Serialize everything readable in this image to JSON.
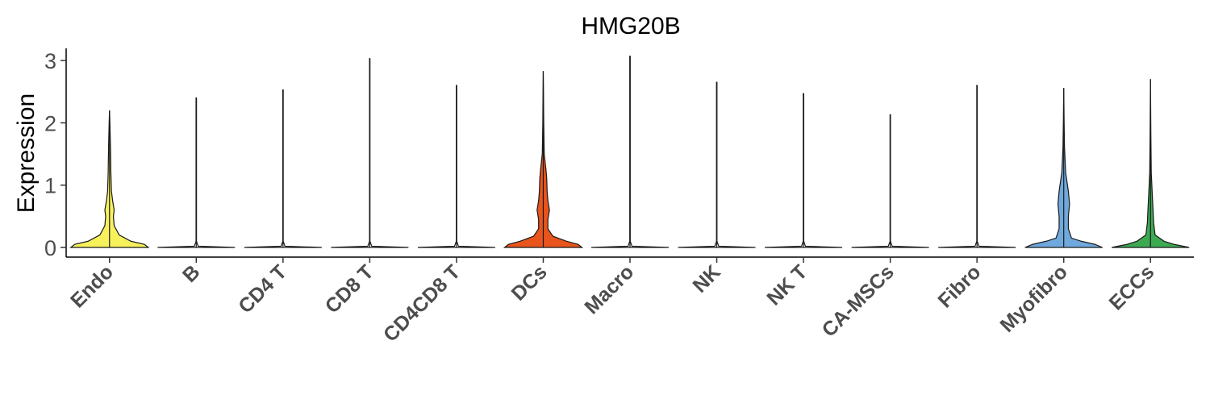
{
  "chart_data": {
    "type": "violin",
    "title": "HMG20B",
    "xlabel": "",
    "ylabel": "Expression",
    "ylim": [
      -0.15,
      3.2
    ],
    "yticks": [
      "0",
      "1",
      "2",
      "3"
    ],
    "grid": false,
    "legend": "none",
    "categories": [
      "Endo",
      "B",
      "CD4 T",
      "CD8 T",
      "CD4CD8 T",
      "DCs",
      "Macro",
      "NK",
      "NK T",
      "CA-MSCs",
      "Fibro",
      "Myofibro",
      "ECCs"
    ],
    "max_values": [
      2.2,
      2.4,
      2.53,
      3.03,
      2.6,
      2.83,
      3.07,
      2.65,
      2.47,
      2.13,
      2.6,
      2.56,
      2.7
    ],
    "colors": [
      "#F7F15C",
      "#FFFFFF",
      "#FFFFFF",
      "#FFFFFF",
      "#FFFFFF",
      "#E8541B",
      "#FFFFFF",
      "#FFFFFF",
      "#FFFFFF",
      "#FFFFFF",
      "#FFFFFF",
      "#6FA8DC",
      "#3DAA52"
    ],
    "density": [
      [
        [
          0,
          1.0
        ],
        [
          0.05,
          0.9
        ],
        [
          0.1,
          0.55
        ],
        [
          0.2,
          0.25
        ],
        [
          0.35,
          0.12
        ],
        [
          0.5,
          0.1
        ],
        [
          0.6,
          0.12
        ],
        [
          0.75,
          0.08
        ],
        [
          0.9,
          0.05
        ],
        [
          1.2,
          0.035
        ],
        [
          1.6,
          0.025
        ],
        [
          2.0,
          0.01
        ],
        [
          2.2,
          0.0
        ]
      ],
      [
        [
          0,
          1.0
        ],
        [
          0.02,
          0.05
        ],
        [
          0.1,
          0.006
        ],
        [
          2.4,
          0.006
        ]
      ],
      [
        [
          0,
          1.0
        ],
        [
          0.02,
          0.05
        ],
        [
          0.1,
          0.006
        ],
        [
          2.53,
          0.006
        ]
      ],
      [
        [
          0,
          1.0
        ],
        [
          0.02,
          0.05
        ],
        [
          0.1,
          0.006
        ],
        [
          3.03,
          0.006
        ]
      ],
      [
        [
          0,
          1.0
        ],
        [
          0.02,
          0.05
        ],
        [
          0.1,
          0.006
        ],
        [
          2.6,
          0.006
        ]
      ],
      [
        [
          0,
          1.0
        ],
        [
          0.05,
          0.9
        ],
        [
          0.1,
          0.6
        ],
        [
          0.18,
          0.25
        ],
        [
          0.3,
          0.12
        ],
        [
          0.45,
          0.12
        ],
        [
          0.6,
          0.16
        ],
        [
          0.75,
          0.12
        ],
        [
          0.9,
          0.1
        ],
        [
          1.1,
          0.09
        ],
        [
          1.25,
          0.07
        ],
        [
          1.5,
          0.025
        ],
        [
          2.0,
          0.012
        ],
        [
          2.5,
          0.006
        ],
        [
          2.83,
          0.0
        ]
      ],
      [
        [
          0,
          1.0
        ],
        [
          0.02,
          0.05
        ],
        [
          0.1,
          0.006
        ],
        [
          3.07,
          0.006
        ]
      ],
      [
        [
          0,
          1.0
        ],
        [
          0.02,
          0.05
        ],
        [
          0.1,
          0.006
        ],
        [
          2.65,
          0.006
        ]
      ],
      [
        [
          0,
          1.0
        ],
        [
          0.02,
          0.05
        ],
        [
          0.1,
          0.006
        ],
        [
          2.47,
          0.006
        ]
      ],
      [
        [
          0,
          1.0
        ],
        [
          0.02,
          0.05
        ],
        [
          0.1,
          0.006
        ],
        [
          2.13,
          0.006
        ]
      ],
      [
        [
          0,
          1.0
        ],
        [
          0.02,
          0.05
        ],
        [
          0.1,
          0.006
        ],
        [
          2.6,
          0.006
        ]
      ],
      [
        [
          0,
          1.0
        ],
        [
          0.05,
          0.8
        ],
        [
          0.1,
          0.45
        ],
        [
          0.15,
          0.2
        ],
        [
          0.3,
          0.12
        ],
        [
          0.5,
          0.12
        ],
        [
          0.7,
          0.15
        ],
        [
          0.9,
          0.12
        ],
        [
          1.2,
          0.05
        ],
        [
          1.6,
          0.02
        ],
        [
          2.0,
          0.01
        ],
        [
          2.56,
          0.0
        ]
      ],
      [
        [
          0,
          1.0
        ],
        [
          0.05,
          0.6
        ],
        [
          0.1,
          0.35
        ],
        [
          0.2,
          0.12
        ],
        [
          0.4,
          0.08
        ],
        [
          0.55,
          0.07
        ],
        [
          0.8,
          0.05
        ],
        [
          1.2,
          0.02
        ],
        [
          1.8,
          0.01
        ],
        [
          2.7,
          0.0
        ]
      ]
    ]
  }
}
